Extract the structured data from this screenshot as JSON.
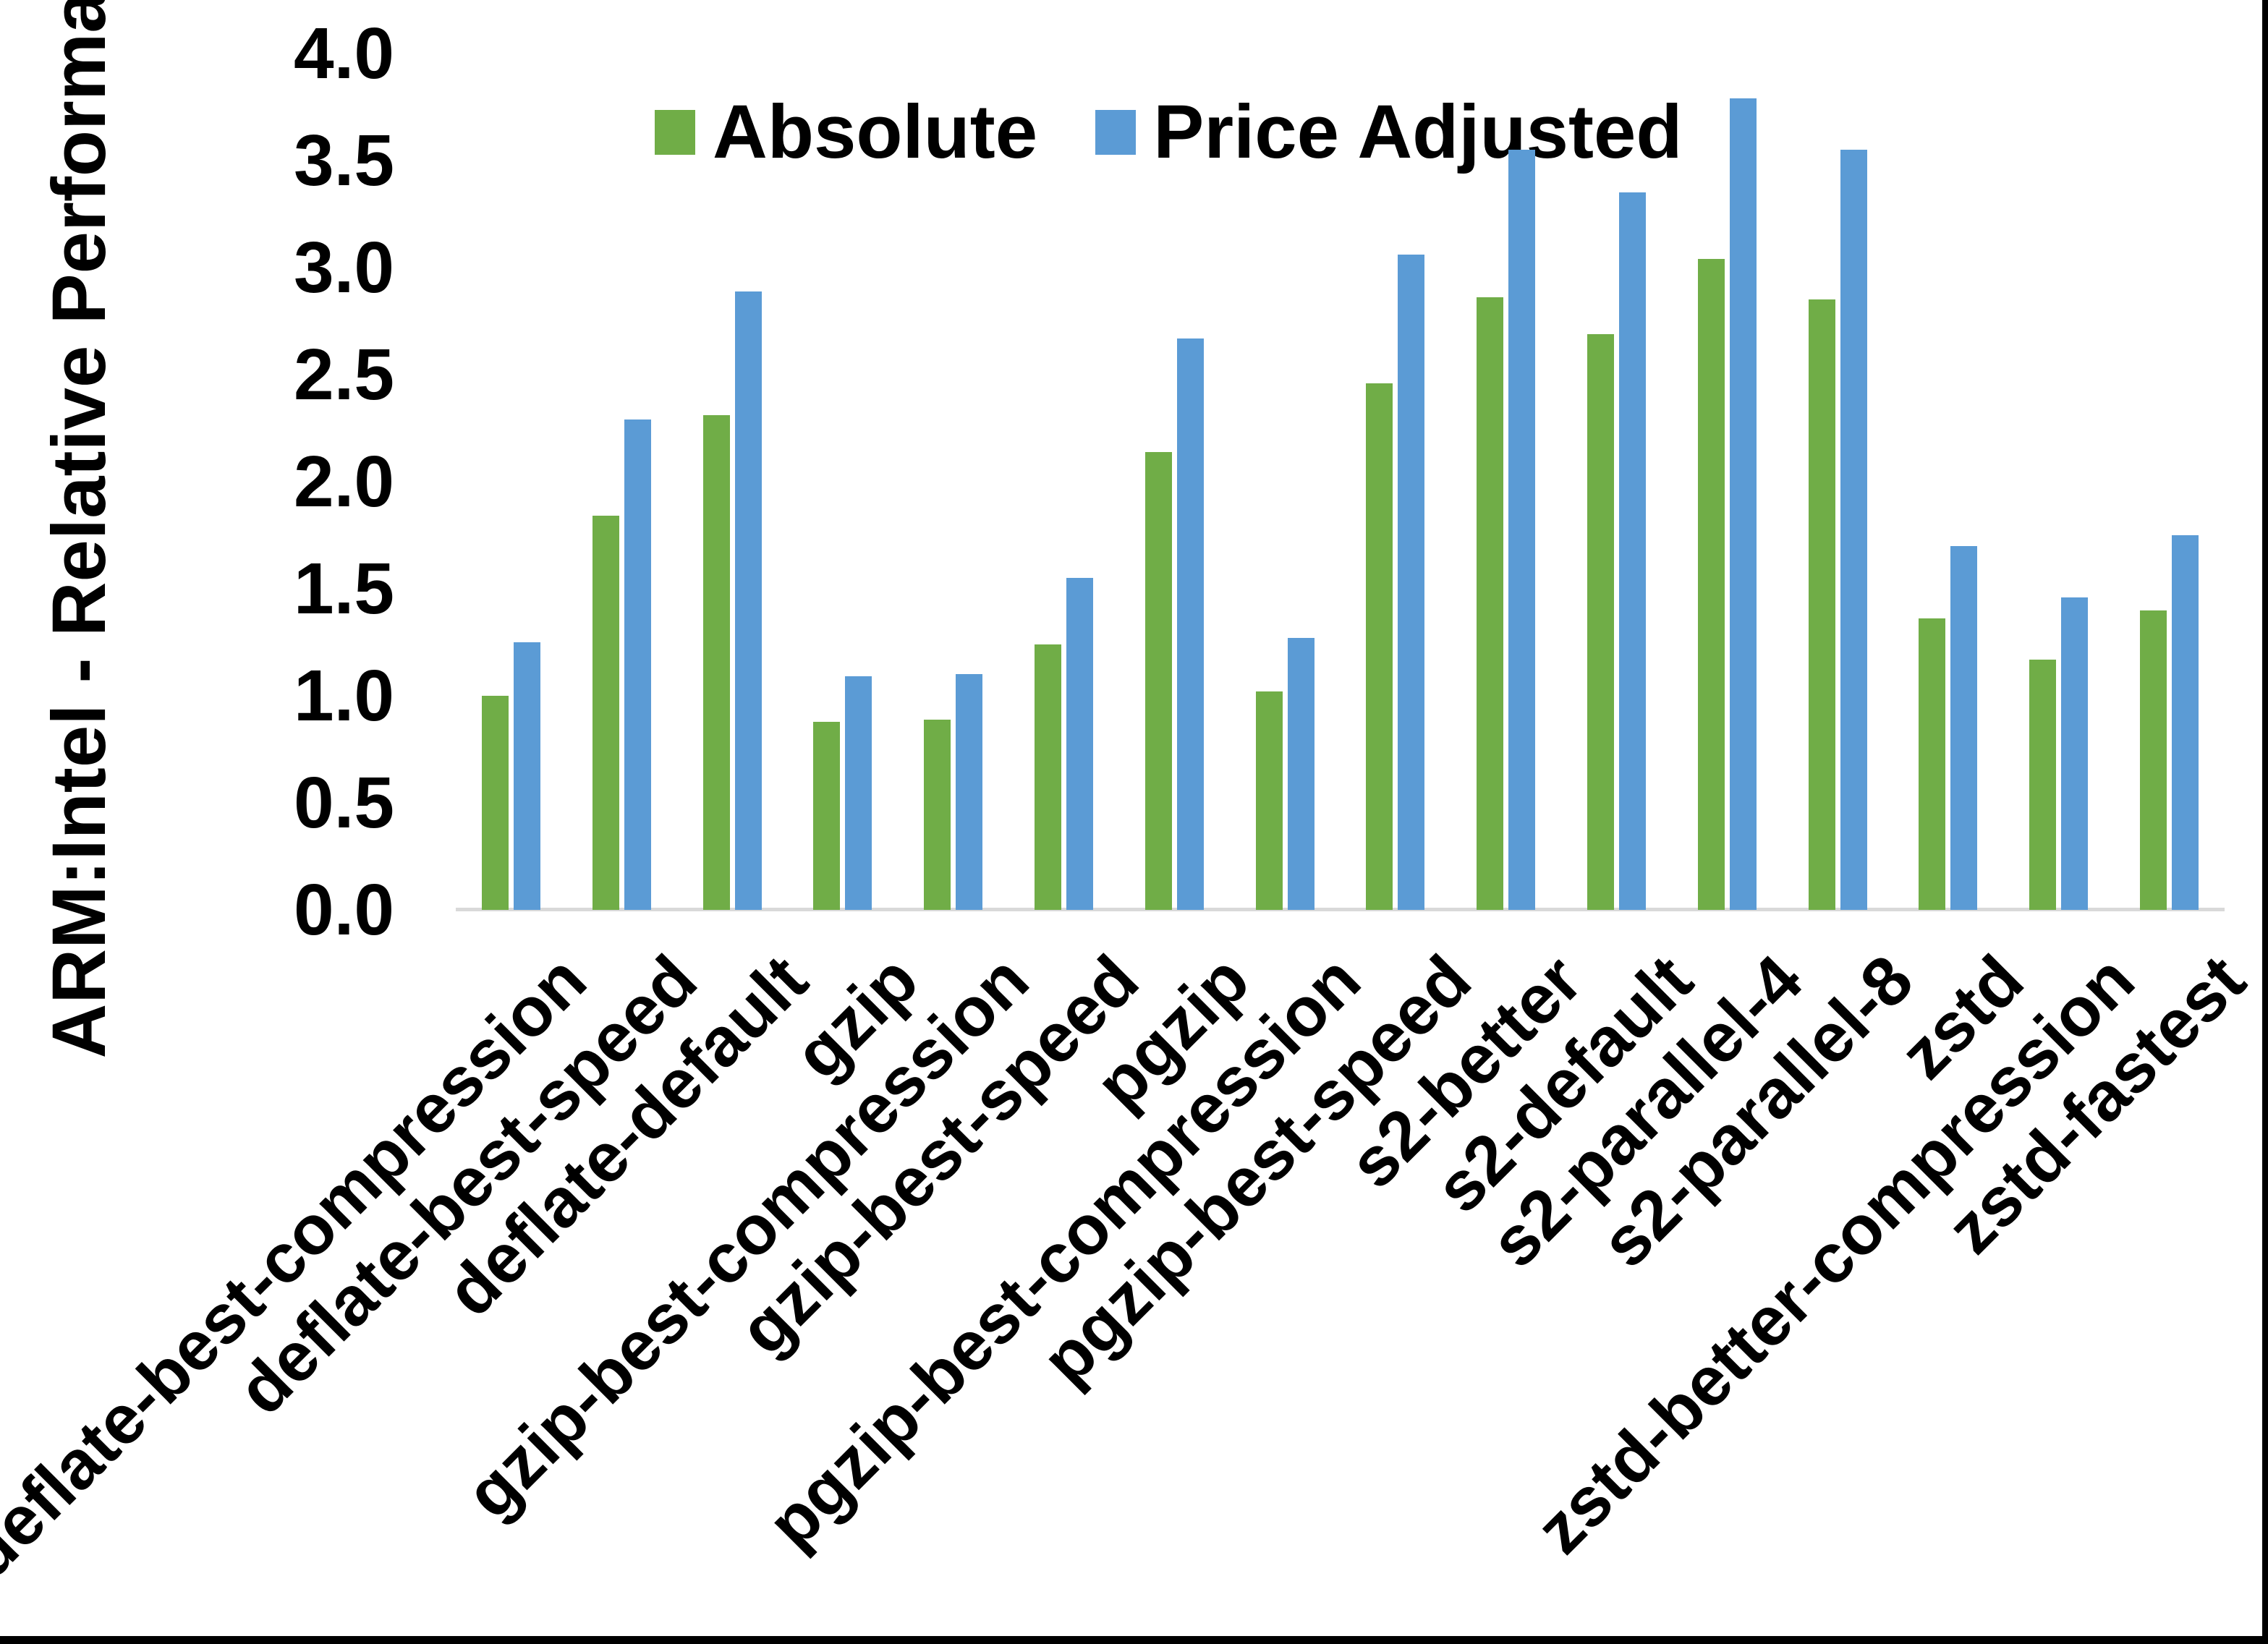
{
  "chart_data": {
    "type": "bar",
    "title": "",
    "xlabel": "",
    "ylabel": "ARM:Intel - Relative Performance",
    "ylim": [
      0.0,
      4.0
    ],
    "ytick_step": 0.5,
    "ytick_labels": [
      "0.0",
      "0.5",
      "1.0",
      "1.5",
      "2.0",
      "2.5",
      "3.0",
      "3.5",
      "4.0"
    ],
    "grid": false,
    "legend_position": "top-center",
    "background_color": "#FFFFFF",
    "axis_line_color": "#D9D9D9",
    "text_color": "#000000",
    "categories": [
      "deflate-best-compression",
      "deflate-best-speed",
      "deflate-default",
      "gzip",
      "gzip-best-compression",
      "gzip-best-speed",
      "pgzip",
      "pgzip-best-compression",
      "pgzip-best-speed",
      "s2-better",
      "s2-default",
      "s2-parallel-4",
      "s2-parallel-8",
      "zstd",
      "zstd-better-compression",
      "zstd-fastest"
    ],
    "series": [
      {
        "name": "Absolute",
        "color": "#70AD47",
        "values": [
          1.0,
          1.84,
          2.31,
          0.88,
          0.89,
          1.24,
          2.14,
          1.02,
          2.46,
          2.86,
          2.69,
          3.04,
          2.85,
          1.36,
          1.17,
          1.4
        ]
      },
      {
        "name": "Price Adjusted",
        "color": "#5B9BD5",
        "values": [
          1.25,
          2.29,
          2.89,
          1.09,
          1.1,
          1.55,
          2.67,
          1.27,
          3.06,
          3.55,
          3.35,
          3.79,
          3.55,
          1.7,
          1.46,
          1.75
        ]
      }
    ]
  }
}
